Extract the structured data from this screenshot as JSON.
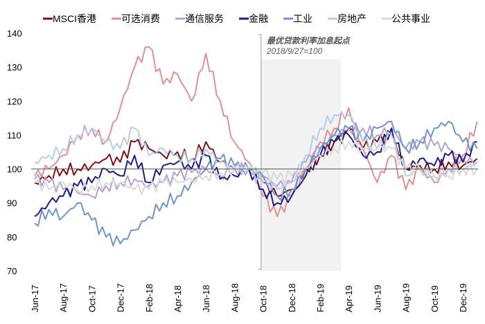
{
  "chart_data": {
    "type": "line",
    "title": "",
    "xlabel": "",
    "ylabel": "",
    "ylim": [
      70,
      140
    ],
    "yticks": [
      70,
      80,
      90,
      100,
      110,
      120,
      130,
      140
    ],
    "xtick_labels": [
      "Jun-17",
      "Aug-17",
      "Oct-17",
      "Dec-17",
      "Feb-18",
      "Apr-18",
      "Jun-18",
      "Aug-18",
      "Oct-18",
      "Dec-18",
      "Feb-19",
      "Apr-19",
      "Jun-19",
      "Aug-19",
      "Oct-19",
      "Dec-19"
    ],
    "x": [
      "2017-06",
      "2017-07",
      "2017-08",
      "2017-09",
      "2017-10",
      "2017-11",
      "2017-12",
      "2018-01",
      "2018-02",
      "2018-03",
      "2018-04",
      "2018-05",
      "2018-06",
      "2018-07",
      "2018-08",
      "2018-09",
      "2018-10",
      "2018-11",
      "2018-12",
      "2019-01",
      "2019-02",
      "2019-03",
      "2019-04",
      "2019-05",
      "2019-06",
      "2019-07",
      "2019-08",
      "2019-09",
      "2019-10",
      "2019-11",
      "2019-12",
      "2020-01"
    ],
    "reference_line": 100,
    "shaded_period": {
      "from": "2018-09-27",
      "to": "2019-03-15",
      "color": "#F2F2F2"
    },
    "annotation": {
      "title": "最优贷款利率加息起点",
      "subtitle": "2018/9/27=100"
    },
    "legend_position": "top",
    "grid": false,
    "series": [
      {
        "name": "MSCI香港",
        "color": "#7F1010",
        "values": [
          96,
          98,
          100,
          100,
          101,
          103,
          102,
          108,
          106,
          104,
          105,
          103,
          108,
          102,
          100,
          100,
          96,
          92,
          94,
          100,
          104,
          108,
          112,
          106,
          108,
          110,
          100,
          101,
          100,
          102,
          101,
          103
        ]
      },
      {
        "name": "可选消费",
        "color": "#E09090",
        "values": [
          98,
          100,
          104,
          110,
          112,
          108,
          118,
          130,
          136,
          125,
          128,
          120,
          134,
          120,
          108,
          102,
          92,
          86,
          92,
          100,
          108,
          112,
          118,
          106,
          96,
          104,
          94,
          100,
          96,
          100,
          104,
          114
        ]
      },
      {
        "name": "通信服务",
        "color": "#B3A2CE",
        "values": [
          97,
          96,
          94,
          93,
          92,
          95,
          96,
          97,
          95,
          96,
          98,
          99,
          100,
          98,
          100,
          100,
          98,
          95,
          96,
          102,
          106,
          110,
          112,
          112,
          110,
          112,
          106,
          108,
          107,
          106,
          103,
          102
        ]
      },
      {
        "name": "金融",
        "color": "#1C1C86",
        "values": [
          86,
          90,
          92,
          95,
          96,
          100,
          98,
          104,
          96,
          101,
          102,
          100,
          104,
          97,
          98,
          100,
          94,
          90,
          92,
          98,
          104,
          108,
          110,
          104,
          105,
          112,
          100,
          103,
          101,
          104,
          102,
          108
        ]
      },
      {
        "name": "工业",
        "color": "#6F93CC",
        "values": [
          84,
          88,
          86,
          90,
          85,
          80,
          78,
          82,
          86,
          90,
          92,
          96,
          100,
          103,
          101,
          100,
          98,
          92,
          94,
          100,
          106,
          110,
          112,
          108,
          112,
          114,
          106,
          108,
          112,
          114,
          108,
          106
        ]
      },
      {
        "name": "房地产",
        "color": "#B7CDEA",
        "values": [
          102,
          104,
          106,
          110,
          112,
          108,
          106,
          112,
          104,
          106,
          104,
          103,
          106,
          102,
          100,
          100,
          96,
          94,
          96,
          104,
          112,
          116,
          116,
          108,
          106,
          110,
          98,
          100,
          98,
          100,
          100,
          102
        ]
      },
      {
        "name": "公共事业",
        "color": "#D9D9D9",
        "values": [
          96,
          94,
          96,
          94,
          95,
          96,
          96,
          94,
          94,
          96,
          96,
          97,
          98,
          99,
          100,
          100,
          99,
          97,
          98,
          100,
          104,
          106,
          108,
          106,
          106,
          106,
          100,
          100,
          98,
          98,
          100,
          100
        ]
      }
    ]
  }
}
